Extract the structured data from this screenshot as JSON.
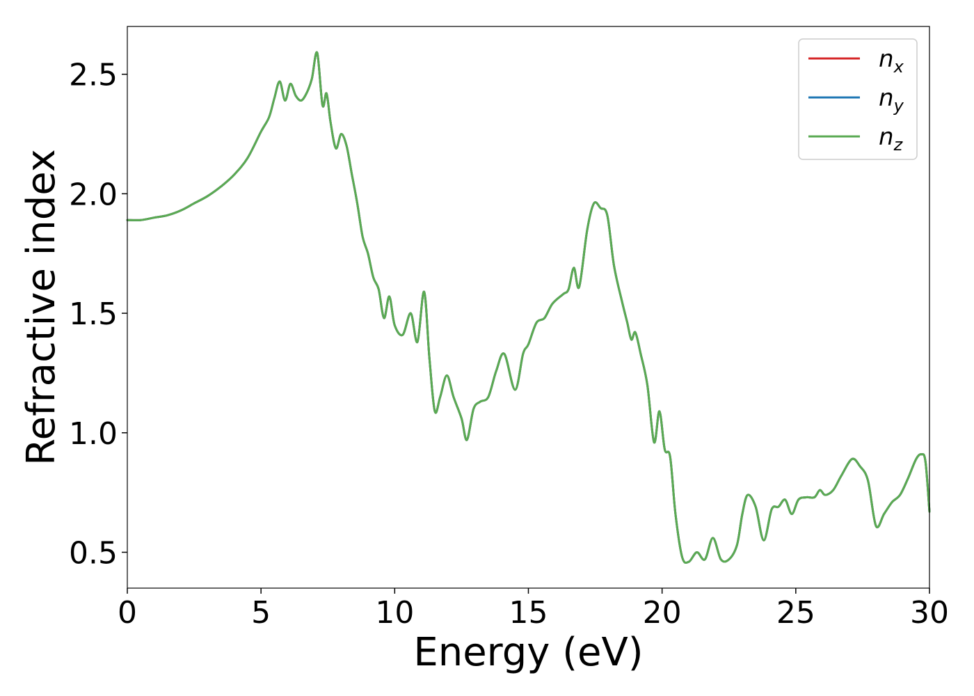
{
  "chart_data": {
    "type": "line",
    "title": "",
    "xlabel": "Energy (eV)",
    "ylabel": "Refractive index",
    "xlim": [
      0,
      30
    ],
    "ylim": [
      0.35,
      2.7
    ],
    "xticks": [
      0,
      5,
      10,
      15,
      20,
      25,
      30
    ],
    "xtick_labels": [
      "0",
      "5",
      "10",
      "15",
      "20",
      "25",
      "30"
    ],
    "yticks": [
      0.5,
      1.0,
      1.5,
      2.0,
      2.5
    ],
    "ytick_labels": [
      "0.5",
      "1.0",
      "1.5",
      "2.0",
      "2.5"
    ],
    "grid": false,
    "legend_position": "top-right",
    "x": [
      0.0,
      0.5,
      1.0,
      1.5,
      2.0,
      2.5,
      3.0,
      3.5,
      4.0,
      4.5,
      5.0,
      5.3,
      5.5,
      5.7,
      5.9,
      6.1,
      6.3,
      6.5,
      6.7,
      6.9,
      7.1,
      7.3,
      7.45,
      7.6,
      7.8,
      8.0,
      8.2,
      8.4,
      8.6,
      8.8,
      9.0,
      9.2,
      9.4,
      9.6,
      9.8,
      10.0,
      10.3,
      10.6,
      10.85,
      11.1,
      11.3,
      11.5,
      11.7,
      11.95,
      12.2,
      12.5,
      12.7,
      12.95,
      13.2,
      13.5,
      13.8,
      14.1,
      14.5,
      14.8,
      15.0,
      15.3,
      15.6,
      15.9,
      16.3,
      16.5,
      16.7,
      16.9,
      17.2,
      17.45,
      17.7,
      17.95,
      18.2,
      18.5,
      18.7,
      18.85,
      19.0,
      19.2,
      19.45,
      19.7,
      19.9,
      20.1,
      20.3,
      20.5,
      20.75,
      21.0,
      21.3,
      21.6,
      21.9,
      22.2,
      22.5,
      22.8,
      23.0,
      23.2,
      23.5,
      23.8,
      24.1,
      24.35,
      24.6,
      24.85,
      25.1,
      25.4,
      25.7,
      25.9,
      26.1,
      26.4,
      26.7,
      27.1,
      27.4,
      27.7,
      28.0,
      28.3,
      28.6,
      28.9,
      29.2,
      29.5,
      29.7,
      29.85,
      30.0
    ],
    "series": [
      {
        "name": "n",
        "subscript": "x",
        "color": "#d62728",
        "y": [
          1.89,
          1.89,
          1.9,
          1.91,
          1.93,
          1.96,
          1.99,
          2.03,
          2.08,
          2.15,
          2.26,
          2.32,
          2.4,
          2.47,
          2.39,
          2.46,
          2.41,
          2.39,
          2.42,
          2.48,
          2.59,
          2.37,
          2.42,
          2.3,
          2.19,
          2.25,
          2.2,
          2.08,
          1.96,
          1.82,
          1.75,
          1.65,
          1.6,
          1.48,
          1.57,
          1.45,
          1.41,
          1.5,
          1.38,
          1.59,
          1.31,
          1.09,
          1.15,
          1.24,
          1.15,
          1.06,
          0.97,
          1.1,
          1.13,
          1.15,
          1.26,
          1.33,
          1.18,
          1.33,
          1.37,
          1.46,
          1.48,
          1.54,
          1.58,
          1.6,
          1.69,
          1.61,
          1.85,
          1.96,
          1.94,
          1.91,
          1.7,
          1.55,
          1.46,
          1.39,
          1.42,
          1.33,
          1.2,
          0.96,
          1.09,
          0.93,
          0.9,
          0.66,
          0.48,
          0.46,
          0.5,
          0.47,
          0.56,
          0.47,
          0.47,
          0.53,
          0.66,
          0.74,
          0.69,
          0.55,
          0.68,
          0.69,
          0.72,
          0.66,
          0.72,
          0.73,
          0.73,
          0.76,
          0.74,
          0.76,
          0.82,
          0.89,
          0.86,
          0.8,
          0.61,
          0.66,
          0.71,
          0.74,
          0.81,
          0.89,
          0.91,
          0.88,
          0.67
        ]
      },
      {
        "name": "n",
        "subscript": "y",
        "color": "#1f77b4",
        "y": [
          1.89,
          1.89,
          1.9,
          1.91,
          1.93,
          1.96,
          1.99,
          2.03,
          2.08,
          2.15,
          2.26,
          2.32,
          2.4,
          2.47,
          2.39,
          2.46,
          2.41,
          2.39,
          2.42,
          2.48,
          2.59,
          2.37,
          2.42,
          2.3,
          2.19,
          2.25,
          2.2,
          2.08,
          1.96,
          1.82,
          1.75,
          1.65,
          1.6,
          1.48,
          1.57,
          1.45,
          1.41,
          1.5,
          1.38,
          1.59,
          1.31,
          1.09,
          1.15,
          1.24,
          1.15,
          1.06,
          0.97,
          1.1,
          1.13,
          1.15,
          1.26,
          1.33,
          1.18,
          1.33,
          1.37,
          1.46,
          1.48,
          1.54,
          1.58,
          1.6,
          1.69,
          1.61,
          1.85,
          1.96,
          1.94,
          1.91,
          1.7,
          1.55,
          1.46,
          1.39,
          1.42,
          1.33,
          1.2,
          0.96,
          1.09,
          0.93,
          0.9,
          0.66,
          0.48,
          0.46,
          0.5,
          0.47,
          0.56,
          0.47,
          0.47,
          0.53,
          0.66,
          0.74,
          0.69,
          0.55,
          0.68,
          0.69,
          0.72,
          0.66,
          0.72,
          0.73,
          0.73,
          0.76,
          0.74,
          0.76,
          0.82,
          0.89,
          0.86,
          0.8,
          0.61,
          0.66,
          0.71,
          0.74,
          0.81,
          0.89,
          0.91,
          0.88,
          0.67
        ]
      },
      {
        "name": "n",
        "subscript": "z",
        "color": "#5aaa52",
        "y": [
          1.89,
          1.89,
          1.9,
          1.91,
          1.93,
          1.96,
          1.99,
          2.03,
          2.08,
          2.15,
          2.26,
          2.32,
          2.4,
          2.47,
          2.39,
          2.46,
          2.41,
          2.39,
          2.42,
          2.48,
          2.59,
          2.37,
          2.42,
          2.3,
          2.19,
          2.25,
          2.2,
          2.08,
          1.96,
          1.82,
          1.75,
          1.65,
          1.6,
          1.48,
          1.57,
          1.45,
          1.41,
          1.5,
          1.38,
          1.59,
          1.31,
          1.09,
          1.15,
          1.24,
          1.15,
          1.06,
          0.97,
          1.1,
          1.13,
          1.15,
          1.26,
          1.33,
          1.18,
          1.33,
          1.37,
          1.46,
          1.48,
          1.54,
          1.58,
          1.6,
          1.69,
          1.61,
          1.85,
          1.96,
          1.94,
          1.91,
          1.7,
          1.55,
          1.46,
          1.39,
          1.42,
          1.33,
          1.2,
          0.96,
          1.09,
          0.93,
          0.9,
          0.66,
          0.48,
          0.46,
          0.5,
          0.47,
          0.56,
          0.47,
          0.47,
          0.53,
          0.66,
          0.74,
          0.69,
          0.55,
          0.68,
          0.69,
          0.72,
          0.66,
          0.72,
          0.73,
          0.73,
          0.76,
          0.74,
          0.76,
          0.82,
          0.89,
          0.86,
          0.8,
          0.61,
          0.66,
          0.71,
          0.74,
          0.81,
          0.89,
          0.91,
          0.88,
          0.67
        ]
      }
    ]
  }
}
